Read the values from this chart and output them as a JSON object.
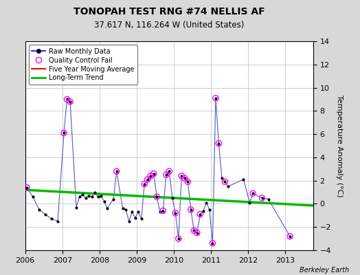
{
  "title": "TONOPAH TEST RNG #74 NELLIS AF",
  "subtitle": "37.617 N, 116.264 W (United States)",
  "attribution": "Berkeley Earth",
  "ylabel_right": "Temperature Anomaly (°C)",
  "ylim": [
    -4,
    14
  ],
  "xlim": [
    2006.0,
    2013.75
  ],
  "yticks": [
    -4,
    -2,
    0,
    2,
    4,
    6,
    8,
    10,
    12,
    14
  ],
  "xticks": [
    2006,
    2007,
    2008,
    2009,
    2010,
    2011,
    2012,
    2013
  ],
  "bg_color": "#d8d8d8",
  "plot_bg_color": "#ffffff",
  "raw_line_color": "#6666cc",
  "raw_marker_color": "#000000",
  "legend_line_color": "#0000ff",
  "qc_color": "#ff00ff",
  "ma_color": "#ff0000",
  "trend_color": "#00bb00",
  "raw_data": [
    [
      2006.042,
      1.4
    ],
    [
      2006.208,
      0.6
    ],
    [
      2006.375,
      -0.5
    ],
    [
      2006.542,
      -0.9
    ],
    [
      2006.708,
      -1.3
    ],
    [
      2006.875,
      -1.5
    ],
    [
      2007.042,
      6.1
    ],
    [
      2007.125,
      9.0
    ],
    [
      2007.208,
      8.8
    ],
    [
      2007.375,
      -0.3
    ],
    [
      2007.458,
      0.6
    ],
    [
      2007.542,
      0.8
    ],
    [
      2007.625,
      0.5
    ],
    [
      2007.708,
      0.7
    ],
    [
      2007.792,
      0.6
    ],
    [
      2007.875,
      1.0
    ],
    [
      2007.958,
      0.6
    ],
    [
      2008.042,
      0.7
    ],
    [
      2008.125,
      0.2
    ],
    [
      2008.208,
      -0.4
    ],
    [
      2008.375,
      0.4
    ],
    [
      2008.458,
      2.8
    ],
    [
      2008.625,
      -0.4
    ],
    [
      2008.708,
      -0.5
    ],
    [
      2008.792,
      -1.5
    ],
    [
      2008.875,
      -0.7
    ],
    [
      2008.958,
      -1.2
    ],
    [
      2009.042,
      -0.7
    ],
    [
      2009.125,
      -1.3
    ],
    [
      2009.208,
      1.7
    ],
    [
      2009.292,
      2.1
    ],
    [
      2009.375,
      2.4
    ],
    [
      2009.458,
      2.6
    ],
    [
      2009.542,
      0.6
    ],
    [
      2009.625,
      -0.7
    ],
    [
      2009.708,
      -0.6
    ],
    [
      2009.792,
      2.5
    ],
    [
      2009.875,
      2.8
    ],
    [
      2009.958,
      0.5
    ],
    [
      2010.042,
      -0.8
    ],
    [
      2010.125,
      -3.0
    ],
    [
      2010.208,
      2.4
    ],
    [
      2010.292,
      2.2
    ],
    [
      2010.375,
      1.9
    ],
    [
      2010.458,
      -0.5
    ],
    [
      2010.542,
      -2.3
    ],
    [
      2010.625,
      -2.5
    ],
    [
      2010.708,
      -0.9
    ],
    [
      2010.792,
      -0.6
    ],
    [
      2010.875,
      0.1
    ],
    [
      2010.958,
      -0.5
    ],
    [
      2011.042,
      -3.4
    ],
    [
      2011.125,
      9.1
    ],
    [
      2011.208,
      5.2
    ],
    [
      2011.292,
      2.2
    ],
    [
      2011.375,
      1.9
    ],
    [
      2011.458,
      1.5
    ],
    [
      2011.875,
      2.1
    ],
    [
      2012.042,
      0.1
    ],
    [
      2012.125,
      0.9
    ],
    [
      2012.375,
      0.5
    ],
    [
      2012.542,
      0.4
    ],
    [
      2013.125,
      -2.8
    ]
  ],
  "qc_fail_points": [
    [
      2006.042,
      1.4
    ],
    [
      2007.042,
      6.1
    ],
    [
      2007.125,
      9.0
    ],
    [
      2007.208,
      8.8
    ],
    [
      2008.458,
      2.8
    ],
    [
      2009.208,
      1.7
    ],
    [
      2009.292,
      2.1
    ],
    [
      2009.375,
      2.4
    ],
    [
      2009.458,
      2.6
    ],
    [
      2009.542,
      0.6
    ],
    [
      2009.708,
      -0.6
    ],
    [
      2009.792,
      2.5
    ],
    [
      2009.875,
      2.8
    ],
    [
      2010.042,
      -0.8
    ],
    [
      2010.125,
      -3.0
    ],
    [
      2010.208,
      2.4
    ],
    [
      2010.292,
      2.2
    ],
    [
      2010.375,
      1.9
    ],
    [
      2010.458,
      -0.5
    ],
    [
      2010.542,
      -2.3
    ],
    [
      2010.625,
      -2.5
    ],
    [
      2010.708,
      -0.9
    ],
    [
      2011.042,
      -3.4
    ],
    [
      2011.125,
      9.1
    ],
    [
      2011.208,
      5.2
    ],
    [
      2011.375,
      1.9
    ],
    [
      2012.125,
      0.9
    ],
    [
      2012.375,
      0.5
    ],
    [
      2013.125,
      -2.8
    ]
  ],
  "trend_x": [
    2006.0,
    2013.75
  ],
  "trend_y": [
    1.2,
    -0.15
  ]
}
